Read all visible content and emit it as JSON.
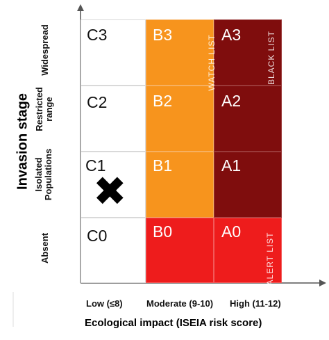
{
  "title_y": "Invasion stage",
  "title_x": "Ecological impact (ISEIA risk score)",
  "rows": [
    "Widespread",
    "Restricted range",
    "Isolated Populations",
    "Absent"
  ],
  "columns": [
    "Low (≤8)",
    "Moderate (9-10)",
    "High (11-12)"
  ],
  "cells": {
    "C3": "C3",
    "B3": "B3",
    "A3": "A3",
    "C2": "C2",
    "B2": "B2",
    "A2": "A2",
    "C1": "C1",
    "B1": "B1",
    "A1": "A1",
    "C0": "C0",
    "B0": "B0",
    "A0": "A0"
  },
  "lists": {
    "watch": "WATCH LIST",
    "black": "BLACK LIST",
    "alert": "ALERT LIST"
  },
  "marker": "✖",
  "colors": {
    "orange": "#f7941d",
    "darkred": "#7f0d0d",
    "red": "#ee1c1c",
    "white": "#ffffff"
  }
}
